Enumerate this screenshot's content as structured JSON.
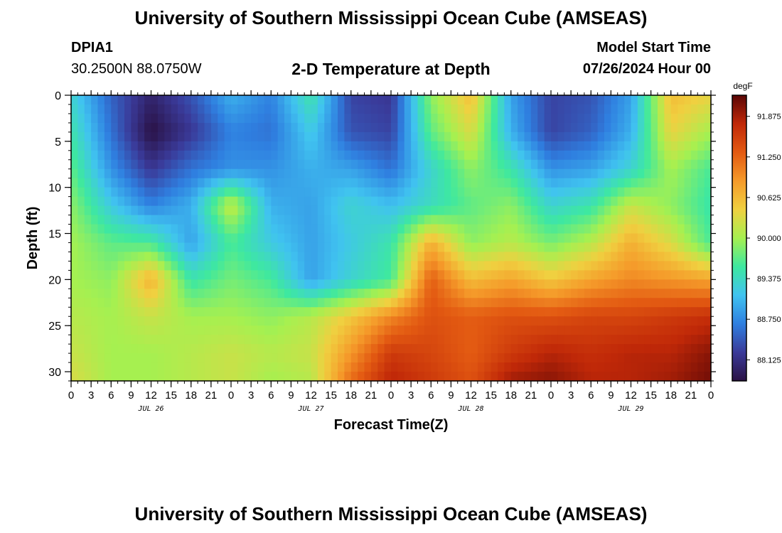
{
  "header": {
    "title": "University of Southern Mississippi Ocean Cube (AMSEAS)",
    "station_id": "DPIA1",
    "station_coords": "30.2500N  88.0750W",
    "plot_title": "2-D Temperature at Depth",
    "model_start_label": "Model Start Time",
    "model_start_value": "07/26/2024 Hour 00"
  },
  "footer": {
    "title": "University of Southern Mississippi Ocean Cube (AMSEAS)"
  },
  "colors": {
    "palette": [
      "#2a1144",
      "#3a3a99",
      "#2f7fe0",
      "#40c3f0",
      "#3ee8a0",
      "#a6f050",
      "#f0d040",
      "#f59a2a",
      "#e35a12",
      "#c02808",
      "#5a0606"
    ]
  },
  "chart_data": {
    "type": "heatmap",
    "title": "2-D Temperature at Depth",
    "xlabel": "Forecast Time(Z)",
    "ylabel": "Depth (ft)",
    "x_range_hours": [
      0,
      96
    ],
    "y_range_ft": [
      0,
      31
    ],
    "x_ticks": [
      {
        "hour": 0,
        "label": "0"
      },
      {
        "hour": 3,
        "label": "3"
      },
      {
        "hour": 6,
        "label": "6"
      },
      {
        "hour": 9,
        "label": "9"
      },
      {
        "hour": 12,
        "label": "12"
      },
      {
        "hour": 15,
        "label": "15"
      },
      {
        "hour": 18,
        "label": "18"
      },
      {
        "hour": 21,
        "label": "21"
      },
      {
        "hour": 24,
        "label": "0"
      },
      {
        "hour": 27,
        "label": "3"
      },
      {
        "hour": 30,
        "label": "6"
      },
      {
        "hour": 33,
        "label": "9"
      },
      {
        "hour": 36,
        "label": "12"
      },
      {
        "hour": 39,
        "label": "15"
      },
      {
        "hour": 42,
        "label": "18"
      },
      {
        "hour": 45,
        "label": "21"
      },
      {
        "hour": 48,
        "label": "0"
      },
      {
        "hour": 51,
        "label": "3"
      },
      {
        "hour": 54,
        "label": "6"
      },
      {
        "hour": 57,
        "label": "9"
      },
      {
        "hour": 60,
        "label": "12"
      },
      {
        "hour": 63,
        "label": "15"
      },
      {
        "hour": 66,
        "label": "18"
      },
      {
        "hour": 69,
        "label": "21"
      },
      {
        "hour": 72,
        "label": "0"
      },
      {
        "hour": 75,
        "label": "3"
      },
      {
        "hour": 78,
        "label": "6"
      },
      {
        "hour": 81,
        "label": "9"
      },
      {
        "hour": 84,
        "label": "12"
      },
      {
        "hour": 87,
        "label": "15"
      },
      {
        "hour": 90,
        "label": "18"
      },
      {
        "hour": 93,
        "label": "21"
      },
      {
        "hour": 96,
        "label": "0"
      }
    ],
    "date_labels": [
      {
        "hour": 12,
        "label": "JUL 26"
      },
      {
        "hour": 36,
        "label": "JUL 27"
      },
      {
        "hour": 60,
        "label": "JUL 28"
      },
      {
        "hour": 84,
        "label": "JUL 29"
      }
    ],
    "y_ticks": [
      {
        "depth": 0,
        "label": "0"
      },
      {
        "depth": 5,
        "label": "5"
      },
      {
        "depth": 10,
        "label": "10"
      },
      {
        "depth": 15,
        "label": "15"
      },
      {
        "depth": 20,
        "label": "20"
      },
      {
        "depth": 25,
        "label": "25"
      },
      {
        "depth": 30,
        "label": "30"
      }
    ],
    "colorbar": {
      "unit": "degF",
      "range": [
        87.8,
        92.2
      ],
      "ticks": [
        "88.125",
        "88.750",
        "89.375",
        "90.000",
        "90.625",
        "91.250",
        "91.875"
      ]
    },
    "grid_x_hours": [
      0,
      6,
      12,
      18,
      24,
      30,
      36,
      42,
      48,
      54,
      60,
      66,
      72,
      78,
      84,
      90,
      96
    ],
    "grid_y_depths": [
      0,
      4,
      8,
      12,
      16,
      20,
      24,
      28,
      31
    ],
    "values": [
      [
        89.3,
        88.5,
        88.0,
        88.4,
        89.0,
        88.7,
        89.5,
        88.3,
        88.2,
        89.9,
        90.6,
        88.9,
        88.3,
        88.4,
        88.9,
        90.6,
        90.4
      ],
      [
        89.5,
        88.6,
        87.8,
        88.2,
        88.7,
        88.6,
        89.2,
        88.4,
        88.3,
        89.7,
        90.3,
        89.0,
        88.3,
        88.5,
        89.0,
        90.4,
        90.0
      ],
      [
        89.7,
        88.8,
        88.2,
        88.6,
        88.8,
        88.8,
        89.0,
        88.9,
        88.6,
        89.3,
        89.9,
        89.5,
        88.8,
        88.9,
        89.3,
        90.0,
        89.6
      ],
      [
        89.9,
        89.2,
        88.7,
        89.0,
        90.2,
        89.0,
        88.9,
        89.3,
        89.1,
        89.4,
        89.7,
        89.9,
        89.3,
        89.5,
        90.2,
        89.9,
        89.5
      ],
      [
        90.0,
        89.7,
        89.6,
        88.9,
        89.6,
        89.2,
        88.9,
        89.2,
        89.5,
        90.7,
        89.9,
        90.1,
        89.8,
        90.1,
        90.7,
        90.3,
        89.6
      ],
      [
        90.0,
        89.9,
        90.7,
        89.5,
        89.8,
        89.6,
        88.9,
        89.3,
        89.6,
        91.3,
        90.6,
        90.8,
        90.5,
        90.8,
        91.0,
        90.9,
        90.8
      ],
      [
        90.1,
        90.0,
        90.2,
        90.0,
        90.0,
        89.9,
        90.1,
        90.5,
        91.0,
        91.4,
        91.3,
        91.4,
        91.4,
        91.5,
        91.5,
        91.6,
        91.7
      ],
      [
        90.2,
        90.0,
        90.0,
        90.1,
        90.2,
        90.1,
        90.2,
        90.9,
        91.6,
        91.5,
        91.3,
        91.6,
        91.8,
        91.7,
        91.8,
        91.8,
        92.0
      ],
      [
        90.3,
        90.0,
        90.0,
        90.1,
        90.2,
        90.0,
        90.1,
        91.2,
        91.8,
        91.6,
        91.4,
        91.9,
        92.0,
        91.8,
        91.8,
        91.9,
        92.1
      ]
    ]
  }
}
